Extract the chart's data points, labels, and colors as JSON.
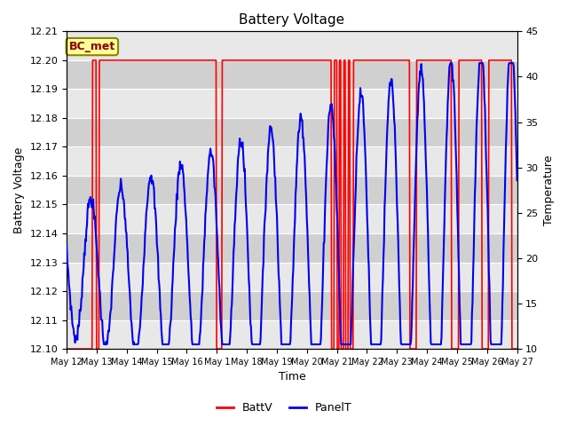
{
  "title": "Battery Voltage",
  "xlabel": "Time",
  "ylabel_left": "Battery Voltage",
  "ylabel_right": "Temperature",
  "ylim_left": [
    12.1,
    12.21
  ],
  "ylim_right": [
    10,
    45
  ],
  "yticks_left": [
    12.1,
    12.11,
    12.12,
    12.13,
    12.14,
    12.15,
    12.16,
    12.17,
    12.18,
    12.19,
    12.2,
    12.21
  ],
  "yticks_right": [
    10,
    15,
    20,
    25,
    30,
    35,
    40,
    45
  ],
  "xtick_labels": [
    "May 12",
    "May 13",
    "May 14",
    "May 15",
    "May 16",
    "May 1",
    "May 18",
    "May 19",
    "May 20",
    "May 21",
    "May 22",
    "May 23",
    "May 24",
    "May 25",
    "May 26",
    "May 27"
  ],
  "batt_color": "#FF0000",
  "panel_color": "#0000EE",
  "plot_bg_light": "#E8E8E8",
  "plot_bg_dark": "#D0D0D0",
  "legend_label_batt": "BattV",
  "legend_label_panel": "PanelT",
  "annotation_text": "BC_met",
  "annotation_bg": "#FFFF99",
  "annotation_border": "#888800",
  "title_fontsize": 11,
  "axis_label_fontsize": 9,
  "tick_fontsize": 8,
  "legend_fontsize": 9
}
